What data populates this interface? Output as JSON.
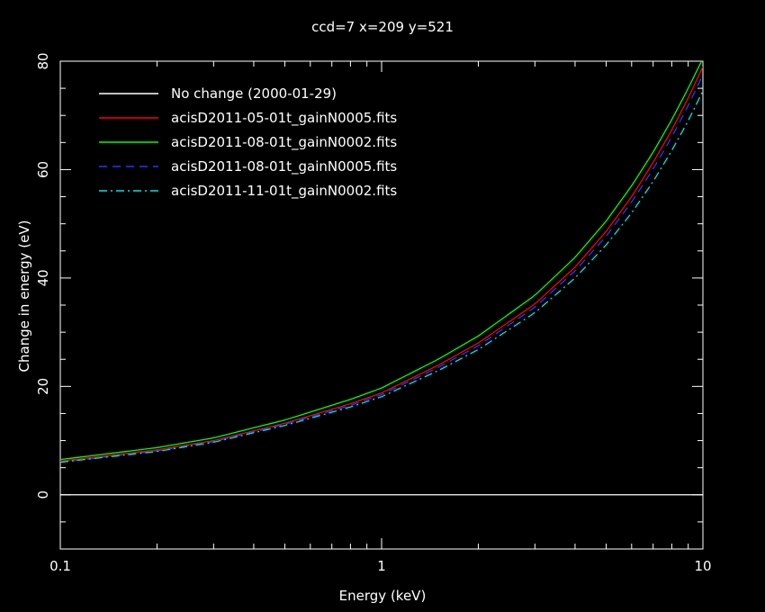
{
  "chart_data": {
    "type": "line",
    "title": "ccd=7 x=209 y=521",
    "xlabel": "Energy (keV)",
    "ylabel": "Change in energy (eV)",
    "x_scale": "log",
    "xlim": [
      0.1,
      10
    ],
    "ylim": [
      -10,
      80
    ],
    "x_ticks": [
      {
        "value": 0.1,
        "label": "0.1"
      },
      {
        "value": 1,
        "label": "1"
      },
      {
        "value": 10,
        "label": "10"
      }
    ],
    "y_ticks": [
      {
        "value": 0,
        "label": "0"
      },
      {
        "value": 20,
        "label": "20"
      },
      {
        "value": 40,
        "label": "40"
      },
      {
        "value": 60,
        "label": "60"
      },
      {
        "value": 80,
        "label": "80"
      }
    ],
    "grid": false,
    "legend_position": "top-left",
    "series": [
      {
        "name": "No change (2000-01-29)",
        "color": "#ffffff",
        "dash": "solid",
        "x": [
          0.1,
          10
        ],
        "y": [
          0,
          0
        ]
      },
      {
        "name": "acisD2011-05-01t_gainN0005.fits",
        "color": "#ff0000",
        "dash": "solid",
        "x": [
          0.1,
          0.2,
          0.3,
          0.5,
          0.8,
          1,
          1.5,
          2,
          3,
          4,
          5,
          6,
          7,
          8,
          9,
          10
        ],
        "y": [
          6.2,
          8.3,
          10.0,
          13.2,
          16.8,
          18.8,
          23.9,
          28.0,
          35.2,
          42.0,
          48.6,
          55.0,
          61.3,
          67.3,
          73.2,
          79.0
        ]
      },
      {
        "name": "acisD2011-08-01t_gainN0002.fits",
        "color": "#00ff00",
        "dash": "solid",
        "x": [
          0.1,
          0.2,
          0.3,
          0.5,
          0.8,
          1,
          1.5,
          2,
          3,
          4,
          5,
          6,
          7,
          8,
          9,
          10
        ],
        "y": [
          6.5,
          8.7,
          10.5,
          13.8,
          17.6,
          19.7,
          25.0,
          29.3,
          36.8,
          43.8,
          50.5,
          57.0,
          63.2,
          69.2,
          75.0,
          80.5
        ]
      },
      {
        "name": "acisD2011-08-01t_gainN0005.fits",
        "color": "#1a3cff",
        "dash": "dashed",
        "x": [
          0.1,
          0.2,
          0.3,
          0.5,
          0.8,
          1,
          1.5,
          2,
          3,
          4,
          5,
          6,
          7,
          8,
          9,
          10
        ],
        "y": [
          6.0,
          8.1,
          9.8,
          13.0,
          16.5,
          18.5,
          23.5,
          27.5,
          34.6,
          41.3,
          47.7,
          54.0,
          60.1,
          66.0,
          71.8,
          77.5
        ]
      },
      {
        "name": "acisD2011-11-01t_gainN0002.fits",
        "color": "#00e5e5",
        "dash": "dashdot",
        "x": [
          0.1,
          0.2,
          0.3,
          0.5,
          0.8,
          1,
          1.5,
          2,
          3,
          4,
          5,
          6,
          7,
          8,
          9,
          10
        ],
        "y": [
          6.0,
          8.0,
          9.7,
          12.8,
          16.2,
          18.1,
          22.9,
          26.8,
          33.6,
          40.0,
          46.1,
          52.0,
          57.8,
          63.5,
          69.0,
          74.5
        ]
      }
    ]
  }
}
